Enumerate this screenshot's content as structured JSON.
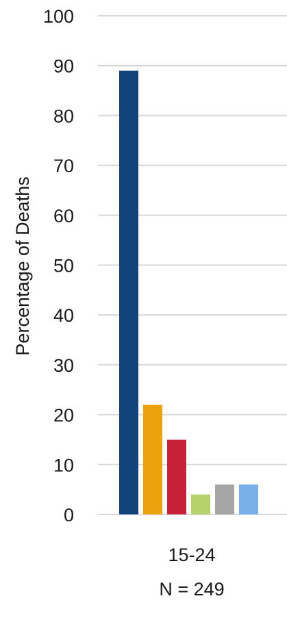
{
  "chart_data": {
    "type": "bar",
    "ylabel": "Percentage of Deaths",
    "ylim": [
      0,
      100
    ],
    "yticks": [
      0,
      10,
      20,
      30,
      40,
      50,
      60,
      70,
      80,
      90,
      100
    ],
    "grid": true,
    "categories": [
      {
        "label": "15-24",
        "sublabel": "N = 249"
      }
    ],
    "series": [
      {
        "color": "#12437a",
        "values": [
          89
        ]
      },
      {
        "color": "#eaa20d",
        "values": [
          22
        ]
      },
      {
        "color": "#c7213a",
        "values": [
          15
        ]
      },
      {
        "color": "#b4d36a",
        "values": [
          4
        ]
      },
      {
        "color": "#a6a6a6",
        "values": [
          6
        ]
      },
      {
        "color": "#79b0ea",
        "values": [
          6
        ]
      }
    ]
  }
}
